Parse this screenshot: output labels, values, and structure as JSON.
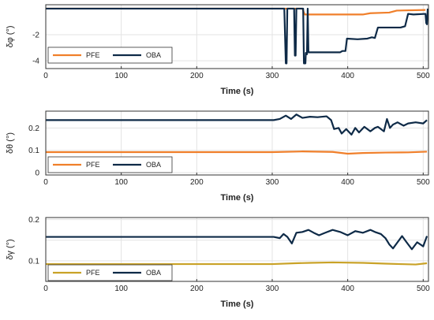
{
  "colors": {
    "pfe": "#f07f2a",
    "pfe_gold": "#c9a227",
    "oba": "#0e2a47",
    "grid": "#e3e3e3",
    "axis": "#333333"
  },
  "chart_data": [
    {
      "type": "line",
      "ylabel": "δφ (°)",
      "xlabel": "Time (s)",
      "xlim": [
        0,
        507
      ],
      "ylim": [
        -4.6,
        0.3
      ],
      "xticks": [
        0,
        100,
        200,
        300,
        400,
        500
      ],
      "yticks": [
        -4,
        -2
      ],
      "grid": true,
      "legend_position": "bottom-left",
      "series": [
        {
          "name": "PFE",
          "color_key": "pfe",
          "points": [
            [
              0,
              0
            ],
            [
              340,
              0
            ],
            [
              343,
              -0.45
            ],
            [
              420,
              -0.45
            ],
            [
              430,
              -0.35
            ],
            [
              455,
              -0.3
            ],
            [
              465,
              -0.15
            ],
            [
              503,
              -0.1
            ]
          ]
        },
        {
          "name": "OBA",
          "color_key": "oba",
          "points": [
            [
              0,
              0
            ],
            [
              316,
              0
            ],
            [
              318,
              -4.2
            ],
            [
              319,
              -4.2
            ],
            [
              320,
              0
            ],
            [
              329,
              0
            ],
            [
              330,
              -3.6
            ],
            [
              331,
              -3.6
            ],
            [
              332,
              0
            ],
            [
              341,
              0
            ],
            [
              342,
              -4.2
            ],
            [
              344,
              -4.2
            ],
            [
              344.5,
              -3.4
            ],
            [
              346,
              -3.5
            ],
            [
              347,
              0
            ],
            [
              348,
              -3.35
            ],
            [
              390,
              -3.35
            ],
            [
              393,
              -3.25
            ],
            [
              397,
              -3.25
            ],
            [
              399,
              -2.3
            ],
            [
              413,
              -2.35
            ],
            [
              426,
              -2.3
            ],
            [
              432,
              -2.2
            ],
            [
              436,
              -2.25
            ],
            [
              440,
              -1.45
            ],
            [
              470,
              -1.45
            ],
            [
              476,
              -1.35
            ],
            [
              480,
              -0.4
            ],
            [
              487,
              -0.45
            ],
            [
              503,
              -0.4
            ],
            [
              504,
              -1.1
            ],
            [
              505,
              -1.2
            ],
            [
              506,
              0
            ]
          ]
        }
      ]
    },
    {
      "type": "line",
      "ylabel": "δθ (°)",
      "xlabel": "Time (s)",
      "xlim": [
        0,
        507
      ],
      "ylim": [
        -0.01,
        0.275
      ],
      "xticks": [
        0,
        100,
        200,
        300,
        400,
        500
      ],
      "yticks": [
        0,
        0.1,
        0.2
      ],
      "grid": true,
      "legend_position": "bottom-left",
      "series": [
        {
          "name": "PFE",
          "color_key": "pfe",
          "points": [
            [
              0,
              0.092
            ],
            [
              300,
              0.092
            ],
            [
              340,
              0.095
            ],
            [
              380,
              0.093
            ],
            [
              400,
              0.085
            ],
            [
              420,
              0.088
            ],
            [
              450,
              0.09
            ],
            [
              480,
              0.091
            ],
            [
              505,
              0.094
            ]
          ]
        },
        {
          "name": "OBA",
          "color_key": "oba",
          "points": [
            [
              0,
              0.235
            ],
            [
              302,
              0.235
            ],
            [
              310,
              0.24
            ],
            [
              318,
              0.255
            ],
            [
              325,
              0.24
            ],
            [
              332,
              0.26
            ],
            [
              340,
              0.245
            ],
            [
              350,
              0.25
            ],
            [
              360,
              0.248
            ],
            [
              372,
              0.252
            ],
            [
              378,
              0.235
            ],
            [
              382,
              0.195
            ],
            [
              388,
              0.2
            ],
            [
              392,
              0.175
            ],
            [
              398,
              0.195
            ],
            [
              405,
              0.17
            ],
            [
              410,
              0.2
            ],
            [
              415,
              0.18
            ],
            [
              422,
              0.205
            ],
            [
              430,
              0.185
            ],
            [
              436,
              0.2
            ],
            [
              440,
              0.205
            ],
            [
              448,
              0.185
            ],
            [
              452,
              0.24
            ],
            [
              456,
              0.2
            ],
            [
              460,
              0.215
            ],
            [
              466,
              0.225
            ],
            [
              474,
              0.21
            ],
            [
              480,
              0.22
            ],
            [
              490,
              0.225
            ],
            [
              500,
              0.22
            ],
            [
              505,
              0.235
            ]
          ]
        }
      ]
    },
    {
      "type": "line",
      "ylabel": "δγ (°)",
      "xlabel": "Time (s)",
      "xlim": [
        0,
        507
      ],
      "ylim": [
        0.05,
        0.205
      ],
      "xticks": [
        0,
        100,
        200,
        300,
        400,
        500
      ],
      "yticks": [
        0.1,
        0.15,
        0.2
      ],
      "ytick_labels": [
        "0.1",
        "",
        "0.2"
      ],
      "grid": true,
      "legend_position": "bottom-left",
      "series": [
        {
          "name": "PFE",
          "color_key": "pfe_gold",
          "points": [
            [
              0,
              0.092
            ],
            [
              300,
              0.092
            ],
            [
              330,
              0.094
            ],
            [
              350,
              0.095
            ],
            [
              380,
              0.096
            ],
            [
              420,
              0.095
            ],
            [
              450,
              0.093
            ],
            [
              470,
              0.092
            ],
            [
              490,
              0.091
            ],
            [
              505,
              0.094
            ]
          ]
        },
        {
          "name": "OBA",
          "color_key": "oba",
          "points": [
            [
              0,
              0.158
            ],
            [
              302,
              0.158
            ],
            [
              310,
              0.155
            ],
            [
              315,
              0.165
            ],
            [
              320,
              0.158
            ],
            [
              326,
              0.142
            ],
            [
              332,
              0.168
            ],
            [
              340,
              0.17
            ],
            [
              348,
              0.175
            ],
            [
              355,
              0.168
            ],
            [
              362,
              0.162
            ],
            [
              370,
              0.168
            ],
            [
              380,
              0.175
            ],
            [
              390,
              0.17
            ],
            [
              400,
              0.162
            ],
            [
              410,
              0.172
            ],
            [
              420,
              0.168
            ],
            [
              430,
              0.175
            ],
            [
              436,
              0.17
            ],
            [
              444,
              0.165
            ],
            [
              450,
              0.155
            ],
            [
              455,
              0.14
            ],
            [
              460,
              0.13
            ],
            [
              466,
              0.145
            ],
            [
              472,
              0.16
            ],
            [
              478,
              0.145
            ],
            [
              485,
              0.128
            ],
            [
              492,
              0.145
            ],
            [
              500,
              0.135
            ],
            [
              505,
              0.16
            ]
          ]
        }
      ]
    }
  ]
}
